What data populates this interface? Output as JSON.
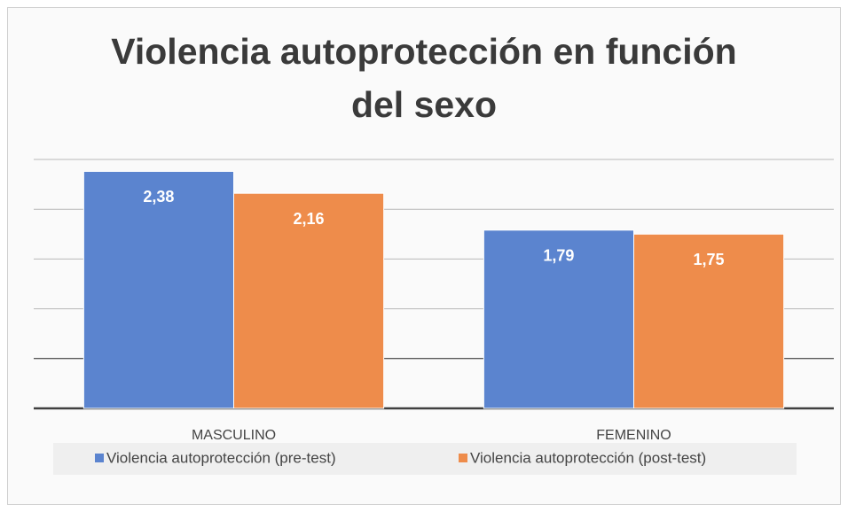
{
  "chart_data": {
    "type": "bar",
    "title": "Violencia autoprotección en función del sexo",
    "categories": [
      "MASCULINO",
      "FEMENINO"
    ],
    "series": [
      {
        "name": "Violencia autoprotección (pre-test)",
        "color": "#5b84cf",
        "values": [
          2.38,
          1.79
        ],
        "value_labels": [
          "2,38",
          "1,79"
        ]
      },
      {
        "name": "Violencia autoprotección (post-test)",
        "color": "#ee8c4b",
        "values": [
          2.16,
          1.75
        ],
        "value_labels": [
          "2,16",
          "1,75"
        ]
      }
    ],
    "ylim": [
      0,
      2.5
    ],
    "yticks": [
      0,
      0.5,
      1,
      1.5,
      2,
      2.5
    ],
    "grid": true,
    "legend": "bottom"
  }
}
